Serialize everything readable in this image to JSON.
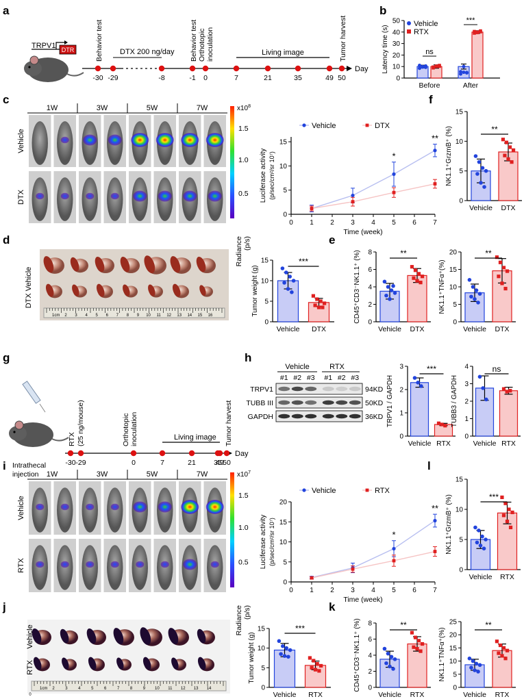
{
  "panel_letters": {
    "a": "a",
    "b": "b",
    "c": "c",
    "d": "d",
    "e": "e",
    "f": "f",
    "g": "g",
    "h": "h",
    "i": "i",
    "j": "j",
    "k": "k",
    "l": "l"
  },
  "colors": {
    "vehicle": "#2244dd",
    "vehicle_fill": "#c8ccf6",
    "treat": "#e02020",
    "treat_fill": "#f9c9c9",
    "timeline": "#dd1111",
    "dtr_box": "#cc1111"
  },
  "panel_a": {
    "gene": "TRPV1",
    "dtr": "DTR",
    "dose": "DTX 200 ng/day",
    "living": "Living image",
    "ticks": [
      "-30",
      "-29",
      "-8",
      "-1",
      "0",
      "7",
      "21",
      "35",
      "49",
      "50"
    ],
    "day": "Day",
    "events": [
      "Behavior test",
      "Behavior test",
      "Orthotopic",
      "inoculation",
      "Tumor harvest"
    ]
  },
  "panel_b": {
    "ylabel": "Latency time (s)",
    "yticks": [
      "0",
      "10",
      "20",
      "30",
      "40",
      "50"
    ],
    "groups": [
      "Before",
      "After"
    ],
    "legend": [
      "Vehicle",
      "RTX"
    ],
    "sig": [
      "ns",
      "***"
    ]
  },
  "panel_c": {
    "weeks": [
      "1W",
      "3W",
      "5W",
      "7W"
    ],
    "rows": [
      "Vehicle",
      "DTX"
    ],
    "scale_exp": "x10",
    "scale_pow": "8",
    "scale_ticks": [
      "1.5",
      "1.0",
      "0.5"
    ],
    "radiance": "Radiance",
    "radiance_unit": "(p/s)",
    "legend": [
      "Vehicle",
      "DTX"
    ],
    "ylabel1": "Luciferase activity",
    "ylabel2": "(p/sec/cm²/sr 10⁷)",
    "xlabel": "Time (week)",
    "xticks": [
      "0",
      "1",
      "2",
      "3",
      "4",
      "5",
      "6",
      "7"
    ],
    "yticks": [
      "0",
      "5",
      "10",
      "15"
    ],
    "sig": [
      "*",
      "**"
    ]
  },
  "panel_d": {
    "ruler": "1cm",
    "ruler_nums": [
      "2",
      "3",
      "4",
      "5",
      "6",
      "7",
      "8",
      "9",
      "10",
      "11",
      "12",
      "13",
      "14",
      "15",
      "16"
    ],
    "row_label": "DTX Vehicle",
    "ylabel": "Tumor weight (g)",
    "yticks": [
      "0",
      "5",
      "10",
      "15"
    ],
    "groups": [
      "Vehicle",
      "DTX"
    ],
    "sig": "***"
  },
  "panel_e": {
    "left": {
      "ylabel": "CD45⁺CD3⁻NK1.1⁺ (%)",
      "yticks": [
        "0",
        "2",
        "4",
        "6",
        "8"
      ],
      "groups": [
        "Vehicle",
        "DTX"
      ],
      "sig": "**"
    },
    "right": {
      "ylabel": "NK1.1⁺TNFα⁺(%)",
      "yticks": [
        "0",
        "5",
        "10",
        "15",
        "20"
      ],
      "groups": [
        "Vehicle",
        "DTX"
      ],
      "sig": "**"
    }
  },
  "panel_f": {
    "ylabel": "NK1.1⁺GrzmB⁺ (%)",
    "yticks": [
      "0",
      "5",
      "10",
      "15"
    ],
    "groups": [
      "Vehicle",
      "DTX"
    ],
    "sig": "**"
  },
  "panel_g": {
    "injection": [
      "Intrathecal",
      "injection"
    ],
    "rtx": [
      "RTX",
      "(25 ng/mouse)"
    ],
    "living": "Living image",
    "ticks": [
      "-30",
      "-29",
      "0",
      "7",
      "21",
      "35",
      "49",
      "50"
    ],
    "day": "Day",
    "events": [
      "Orthotopic",
      "inoculation",
      "Tumor harvest"
    ]
  },
  "panel_h": {
    "groups": [
      "Vehicle",
      "RTX"
    ],
    "lanes": [
      "#1",
      "#2",
      "#3",
      "#1",
      "#2",
      "#3"
    ],
    "proteins": [
      "TRPV1",
      "TUBB III",
      "GAPDH"
    ],
    "kd": [
      "94KD",
      "50KD",
      "36KD"
    ],
    "bar1": {
      "ylabel": "TRPV1 / GAPDH",
      "yticks": [
        "0",
        "1",
        "2",
        "3"
      ],
      "groups": [
        "Vehicle",
        "RTX"
      ],
      "sig": "***"
    },
    "bar2": {
      "ylabel": "TUBB3 / GAPDH",
      "yticks": [
        "0",
        "1",
        "2",
        "3",
        "4"
      ],
      "groups": [
        "Vehicle",
        "RTX"
      ],
      "sig": "ns"
    }
  },
  "panel_i": {
    "weeks": [
      "1W",
      "3W",
      "5W",
      "7W"
    ],
    "rows": [
      "Vehicle",
      "RTX"
    ],
    "scale_exp": "x10",
    "scale_pow": "7",
    "scale_ticks": [
      "1.5",
      "1.0",
      "0.5"
    ],
    "radiance": "Radiance",
    "radiance_unit": "(p/s)",
    "legend": [
      "Vehicle",
      "RTX"
    ],
    "ylabel1": "Luciferase activity",
    "ylabel2": "(p/sec/cm²/sr 10⁷)",
    "xlabel": "Time (week)",
    "xticks": [
      "0",
      "1",
      "2",
      "3",
      "4",
      "5",
      "6",
      "7"
    ],
    "yticks": [
      "0",
      "5",
      "10",
      "15",
      "20"
    ],
    "sig": [
      "*",
      "**"
    ]
  },
  "panel_j": {
    "ruler": "1cm",
    "ruler_nums": [
      "2",
      "3",
      "4",
      "5",
      "6",
      "7",
      "8",
      "9",
      "10",
      "11",
      "12",
      "13",
      "14"
    ],
    "ruler_zero": "0",
    "rows": [
      "Vehicle",
      "RTX"
    ],
    "ylabel": "Tumor weight (g)",
    "yticks": [
      "0",
      "5",
      "10",
      "15"
    ],
    "groups": [
      "Vehicle",
      "RTX"
    ],
    "sig": "***"
  },
  "panel_k": {
    "left": {
      "ylabel": "CD45⁺CD3⁻NK1.1⁺ (%)",
      "yticks": [
        "0",
        "2",
        "4",
        "6",
        "8"
      ],
      "groups": [
        "Vehicle",
        "RTX"
      ],
      "sig": "**"
    },
    "right": {
      "ylabel": "NK1.1⁺TNFα⁺(%)",
      "yticks": [
        "0",
        "5",
        "10",
        "15",
        "20",
        "25"
      ],
      "groups": [
        "Vehicle",
        "RTX"
      ],
      "sig": "**"
    }
  },
  "panel_l": {
    "ylabel": "NK1.1⁺GrzmB⁺ (%)",
    "yticks": [
      "0",
      "5",
      "10",
      "15"
    ],
    "groups": [
      "Vehicle",
      "RTX"
    ],
    "sig": "***"
  },
  "chart_data": [
    {
      "id": "b",
      "type": "bar",
      "title": "",
      "ylabel": "Latency time (s)",
      "ylim": [
        0,
        50
      ],
      "categories": [
        "Before",
        "After"
      ],
      "series": [
        {
          "name": "Vehicle",
          "values": [
            10,
            10
          ],
          "err": [
            1.2,
            2.2
          ],
          "points": [
            [
              8.5,
              9.5,
              10.5,
              11,
              10,
              9.3
            ],
            [
              3.5,
              5,
              4.5,
              5.5,
              10,
              4.8
            ]
          ]
        },
        {
          "name": "RTX",
          "values": [
            10,
            40
          ],
          "err": [
            1.5,
            1.2
          ],
          "points": [
            [
              8.8,
              10,
              11,
              9.6,
              10.4,
              10.2
            ],
            [
              39,
              40,
              41,
              40.5,
              39.5,
              40.2
            ]
          ]
        }
      ],
      "sig": [
        "ns",
        "***"
      ]
    },
    {
      "id": "c",
      "type": "line",
      "xlabel": "Time (week)",
      "ylabel": "Luciferase activity (p/sec/cm²/sr 10⁷)",
      "xlim": [
        0,
        7
      ],
      "ylim": [
        0,
        16
      ],
      "series": [
        {
          "name": "Vehicle",
          "x": [
            1,
            3,
            5,
            7
          ],
          "y": [
            1.2,
            3.9,
            8.3,
            13.2
          ],
          "err": [
            0.7,
            1.5,
            2.5,
            1.3
          ]
        },
        {
          "name": "DTX",
          "x": [
            1,
            3,
            5,
            7
          ],
          "y": [
            1.2,
            2.6,
            4.5,
            6.3
          ],
          "err": [
            0.5,
            0.9,
            1.0,
            0.9
          ]
        }
      ],
      "sig": {
        "5": "*",
        "7": "**"
      }
    },
    {
      "id": "d",
      "type": "bar",
      "ylabel": "Tumor weight (g)",
      "ylim": [
        0,
        15
      ],
      "categories": [
        "Vehicle",
        "DTX"
      ],
      "values": [
        10,
        4.7
      ],
      "err": [
        2,
        1
      ],
      "points": [
        [
          13,
          12,
          11,
          10,
          9.5,
          8,
          7.2
        ],
        [
          6.3,
          5.5,
          5,
          4.5,
          4,
          3.5,
          3.5
        ]
      ],
      "sig": "***"
    },
    {
      "id": "e_left",
      "type": "bar",
      "ylabel": "CD45⁺CD3⁻NK1.1⁺ (%)",
      "ylim": [
        0,
        8
      ],
      "categories": [
        "Vehicle",
        "DTX"
      ],
      "values": [
        3.5,
        5.3
      ],
      "err": [
        0.9,
        0.8
      ],
      "points": [
        [
          4.6,
          4,
          3.6,
          3.3,
          3,
          2.6,
          4.1
        ],
        [
          6.3,
          5.9,
          5.5,
          5.2,
          5,
          4.7,
          4.5
        ]
      ],
      "sig": "**"
    },
    {
      "id": "e_right",
      "type": "bar",
      "ylabel": "NK1.1⁺TNFα⁺(%)",
      "ylim": [
        0,
        20
      ],
      "categories": [
        "Vehicle",
        "DTX"
      ],
      "values": [
        8.3,
        14.6
      ],
      "err": [
        2.5,
        3.5
      ],
      "points": [
        [
          12,
          10,
          9,
          8,
          7.2,
          6.5,
          5.5
        ],
        [
          18.5,
          17,
          15.5,
          14.5,
          13,
          11,
          9.5
        ]
      ],
      "sig": "**"
    },
    {
      "id": "f",
      "type": "bar",
      "ylabel": "NK1.1⁺GrzmB⁺ (%)",
      "ylim": [
        0,
        15
      ],
      "categories": [
        "Vehicle",
        "DTX"
      ],
      "values": [
        5,
        8.2
      ],
      "err": [
        2,
        1.5
      ],
      "points": [
        [
          7.5,
          6.5,
          5.5,
          5,
          4.5,
          3,
          2.3
        ],
        [
          10.3,
          9.8,
          9,
          8.5,
          7.6,
          7,
          6.5
        ]
      ],
      "sig": "**"
    },
    {
      "id": "h_trpv1",
      "type": "bar",
      "ylabel": "TRPV1 / GAPDH",
      "ylim": [
        0,
        3
      ],
      "categories": [
        "Vehicle",
        "RTX"
      ],
      "values": [
        2.3,
        0.5
      ],
      "err": [
        0.2,
        0.05
      ],
      "points": [
        [
          2.5,
          2.3,
          2.15
        ],
        [
          0.55,
          0.5,
          0.45
        ]
      ],
      "sig": "***"
    },
    {
      "id": "h_tubb3",
      "type": "bar",
      "ylabel": "TUBB3 / GAPDH",
      "ylim": [
        0,
        4
      ],
      "categories": [
        "Vehicle",
        "RTX"
      ],
      "values": [
        2.75,
        2.6
      ],
      "err": [
        0.7,
        0.2
      ],
      "points": [
        [
          3.4,
          2.75,
          2.1
        ],
        [
          2.7,
          2.55,
          2.6
        ]
      ],
      "sig": "ns"
    },
    {
      "id": "i",
      "type": "line",
      "xlabel": "Time (week)",
      "ylabel": "Luciferase activity (p/sec/cm²/sr 10⁷)",
      "xlim": [
        0,
        7
      ],
      "ylim": [
        0,
        20
      ],
      "series": [
        {
          "name": "Vehicle",
          "x": [
            1,
            3,
            5,
            7
          ],
          "y": [
            1.1,
            3.5,
            8.3,
            15.3
          ],
          "err": [
            0.3,
            1.2,
            2.0,
            1.6
          ]
        },
        {
          "name": "RTX",
          "x": [
            1,
            3,
            5,
            7
          ],
          "y": [
            1.0,
            3.2,
            5.3,
            7.6
          ],
          "err": [
            0.3,
            0.8,
            1.4,
            1.2
          ]
        }
      ],
      "sig": {
        "5": "*",
        "7": "**"
      }
    },
    {
      "id": "j",
      "type": "bar",
      "ylabel": "Tumor weight (g)",
      "ylim": [
        0,
        15
      ],
      "categories": [
        "Vehicle",
        "RTX"
      ],
      "values": [
        9.5,
        5.6
      ],
      "err": [
        1.7,
        1.1
      ],
      "points": [
        [
          11.8,
          10.5,
          10,
          9.5,
          8.5,
          8,
          7.8
        ],
        [
          7.5,
          6.8,
          6,
          5.5,
          5,
          4.5,
          4.2
        ]
      ],
      "sig": "***"
    },
    {
      "id": "k_left",
      "type": "bar",
      "ylabel": "CD45⁺CD3⁻NK1.1⁺ (%)",
      "ylim": [
        0,
        8
      ],
      "categories": [
        "Vehicle",
        "RTX"
      ],
      "values": [
        3.5,
        5.4
      ],
      "err": [
        1,
        0.9
      ],
      "points": [
        [
          4.8,
          4.2,
          3.8,
          3.5,
          3,
          2.6,
          2.3
        ],
        [
          6.8,
          6.2,
          5.8,
          5.4,
          5,
          4.8,
          4.5
        ]
      ],
      "sig": "**"
    },
    {
      "id": "k_right",
      "type": "bar",
      "ylabel": "NK1.1⁺TNFα⁺(%)",
      "ylim": [
        0,
        25
      ],
      "categories": [
        "Vehicle",
        "RTX"
      ],
      "values": [
        8.6,
        14
      ],
      "err": [
        2.1,
        2.5
      ],
      "points": [
        [
          11,
          10,
          9,
          8.5,
          7.5,
          6.5,
          6
        ],
        [
          17.5,
          16,
          15,
          14,
          13,
          12,
          11
        ]
      ],
      "sig": "**"
    },
    {
      "id": "l",
      "type": "bar",
      "ylabel": "NK1.1⁺GrzmB⁺ (%)",
      "ylim": [
        0,
        15
      ],
      "categories": [
        "Vehicle",
        "RTX"
      ],
      "values": [
        5,
        9.4
      ],
      "err": [
        1.5,
        1.8
      ],
      "points": [
        [
          7,
          6.5,
          5.5,
          5,
          4.5,
          4,
          3.5
        ],
        [
          12,
          11,
          10,
          9.5,
          9,
          8,
          7
        ]
      ],
      "sig": "***"
    }
  ]
}
